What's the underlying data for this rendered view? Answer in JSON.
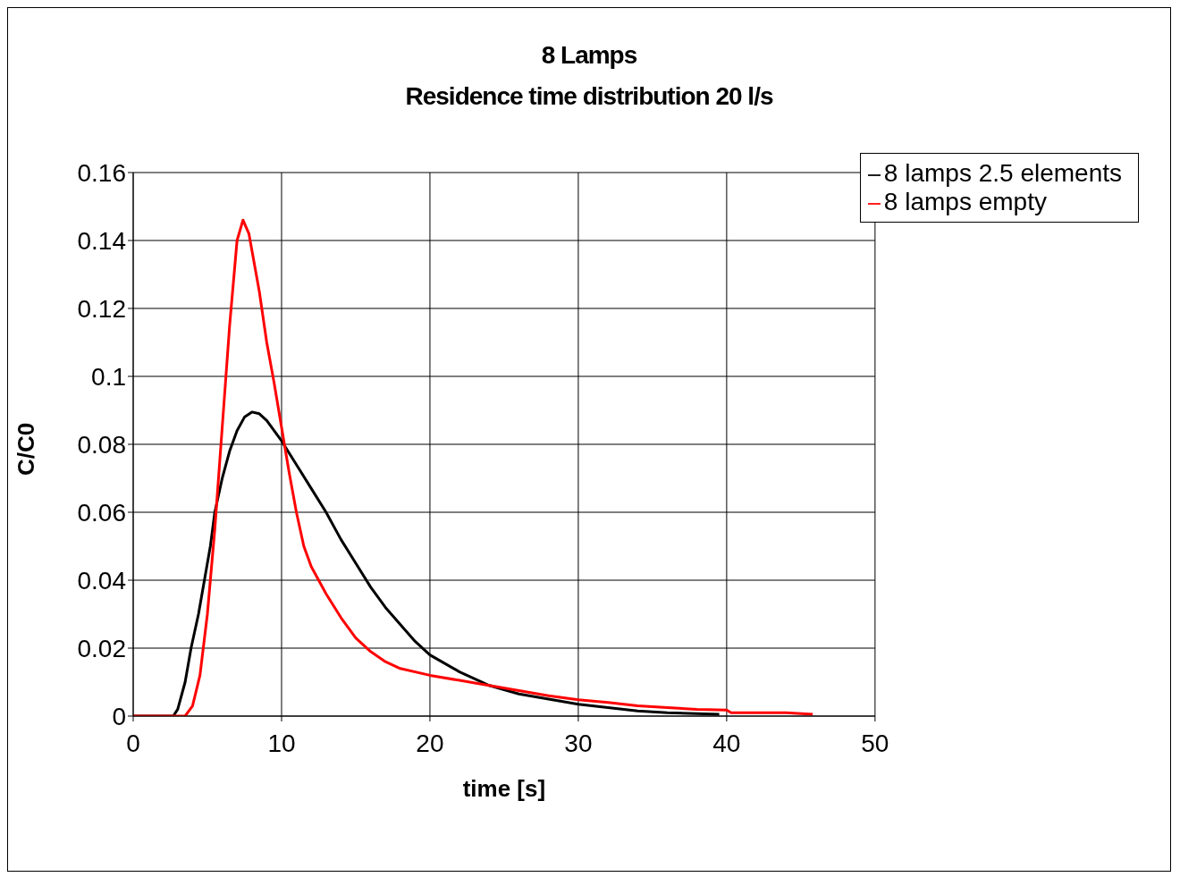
{
  "chart_data": {
    "type": "line",
    "title": "8 Lamps",
    "subtitle": "Residence time distribution 20 l/s",
    "xlabel": "time [s]",
    "ylabel": "C/C0",
    "xlim": [
      0,
      50
    ],
    "xticks": [
      0,
      10,
      20,
      30,
      40,
      50
    ],
    "ylim": [
      0,
      0.16
    ],
    "yticks": [
      0,
      0.02,
      0.04,
      0.06,
      0.08,
      0.1,
      0.12,
      0.14,
      0.16
    ],
    "grid": true,
    "legend": "top right",
    "marker": "none",
    "line_style": "solid",
    "series": [
      {
        "name": "8 lamps 2.5 elements",
        "color": "#000000",
        "x": [
          0,
          2.7,
          3,
          3.5,
          3.9,
          4.4,
          4.8,
          5.2,
          5.5,
          6,
          6.5,
          7,
          7.5,
          8,
          8.5,
          9,
          10,
          11,
          12,
          13,
          14,
          15,
          16,
          17,
          18,
          19,
          20,
          22,
          24,
          26,
          28,
          30,
          32,
          34,
          36,
          39.5
        ],
        "values": [
          0,
          0,
          0.002,
          0.01,
          0.02,
          0.03,
          0.04,
          0.05,
          0.06,
          0.07,
          0.078,
          0.084,
          0.088,
          0.0895,
          0.089,
          0.087,
          0.081,
          0.074,
          0.067,
          0.06,
          0.052,
          0.045,
          0.038,
          0.032,
          0.027,
          0.022,
          0.018,
          0.013,
          0.009,
          0.0065,
          0.005,
          0.0035,
          0.0025,
          0.0015,
          0.001,
          0.0005
        ]
      },
      {
        "name": "8 lamps empty",
        "color": "#ff0000",
        "x": [
          0,
          3.5,
          4,
          4.5,
          5,
          5.5,
          6,
          6.5,
          7,
          7.4,
          7.8,
          8.5,
          9,
          9.5,
          10,
          10.5,
          11,
          11.5,
          12,
          13,
          14,
          15,
          16,
          17,
          18,
          20,
          22,
          24,
          26,
          28,
          30,
          32,
          34,
          36,
          38,
          40,
          40.3,
          42,
          44,
          45.8
        ],
        "values": [
          0,
          0,
          0.003,
          0.012,
          0.03,
          0.055,
          0.085,
          0.115,
          0.14,
          0.146,
          0.142,
          0.125,
          0.11,
          0.098,
          0.085,
          0.072,
          0.06,
          0.05,
          0.044,
          0.036,
          0.029,
          0.023,
          0.019,
          0.016,
          0.014,
          0.012,
          0.0105,
          0.009,
          0.0075,
          0.006,
          0.0048,
          0.004,
          0.003,
          0.0025,
          0.002,
          0.0018,
          0.001,
          0.001,
          0.001,
          0.0005
        ]
      }
    ]
  }
}
